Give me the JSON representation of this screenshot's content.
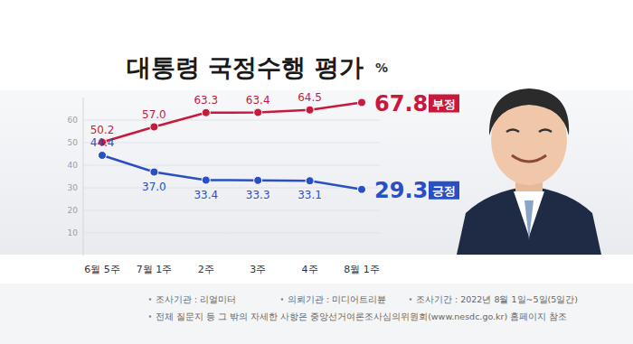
{
  "chart_data": {
    "type": "line",
    "title": "대통령 국정수행 평가",
    "ylabel": "%",
    "categories": [
      "6월 5주",
      "7월 1주",
      "2주",
      "3주",
      "4주",
      "8월 1주"
    ],
    "series": [
      {
        "name": "부정",
        "color": "#c8183c",
        "marker": "circle",
        "values": [
          50.2,
          57.0,
          63.3,
          63.4,
          64.5,
          67.8
        ],
        "value_labels": [
          "50.2",
          "57.0",
          "63.3",
          "63.4",
          "64.5",
          "67.8"
        ]
      },
      {
        "name": "긍정",
        "color": "#2a4fc4",
        "marker": "circle",
        "values": [
          44.4,
          37.0,
          33.4,
          33.3,
          33.1,
          29.3
        ],
        "value_labels": [
          "44.4",
          "37.0",
          "33.4",
          "33.3",
          "33.1",
          "29.3"
        ]
      }
    ],
    "ylim": [
      0,
      70
    ],
    "yticks": [
      10,
      20,
      30,
      40,
      50,
      60
    ],
    "grid": true,
    "data_labels": true,
    "annotations": [
      "조사기관 : 리얼미터",
      "의뢰기관 : 미디어트리뷴",
      "조사기간 : 2022년 8월 1일~5일(5일간)",
      "전체 질문지 등 그 밖의 자세한 사항은 중앙선거여론조사심의위원회(www.nesdc.go.kr) 홈페이지 참조"
    ]
  }
}
